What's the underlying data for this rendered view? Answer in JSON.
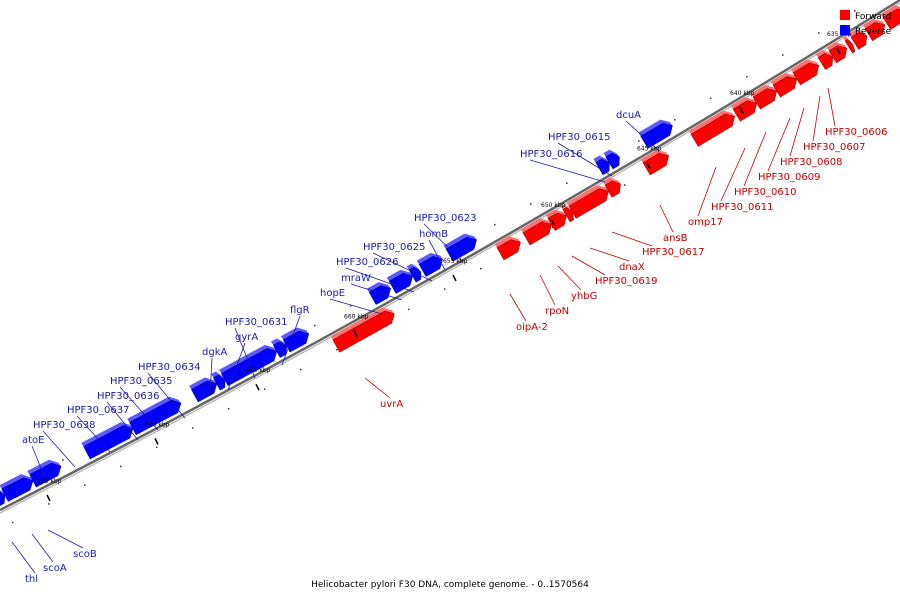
{
  "colors": {
    "forward": "#ff0000",
    "reverse": "#0000ff",
    "forward_label": "#c00000",
    "reverse_label": "#1a1aa8",
    "backbone": "#808080"
  },
  "legend": {
    "forward": "Forward",
    "reverse": "Reverse"
  },
  "caption": "Helicobacter pylori F30 DNA, complete genome. - 0..1570564",
  "ticks": [
    "635 kbp",
    "640 kbp",
    "645 kbp",
    "650 kbp",
    "655 kbp",
    "660 kbp",
    "665 kbp",
    "670 kbp",
    "675 kbp"
  ],
  "reverse_genes": [
    "thl",
    "scoA",
    "scoB",
    "atoE",
    "HPF30_0638",
    "HPF30_0637",
    "HPF30_0636",
    "HPF30_0635",
    "HPF30_0634",
    "dgkA",
    "gyrA",
    "HPF30_0631",
    "flgR",
    "hopE",
    "mraW",
    "HPF30_0626",
    "HPF30_0625",
    "homB",
    "HPF30_0623",
    "HPF30_0616",
    "HPF30_0615",
    "dcuA"
  ],
  "forward_genes": [
    "uvrA",
    "oipA-2",
    "rpoN",
    "yhbG",
    "HPF30_0619",
    "dnaX",
    "HPF30_0617",
    "ansB",
    "omp17",
    "HPF30_0611",
    "HPF30_0610",
    "HPF30_0609",
    "HPF30_0608",
    "HPF30_0607",
    "HPF30_0606"
  ]
}
